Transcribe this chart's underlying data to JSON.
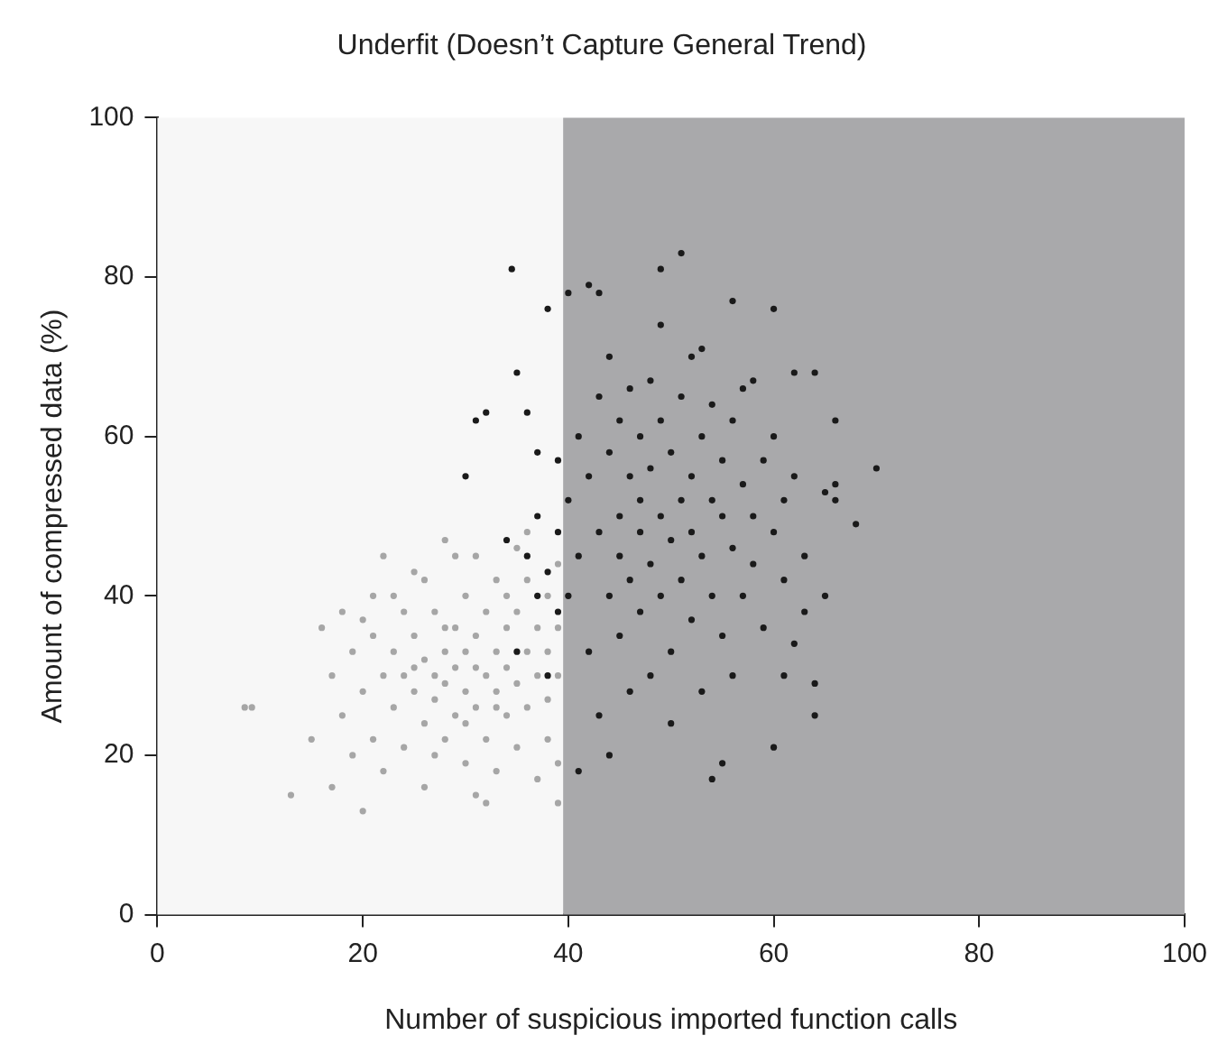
{
  "chart_data": {
    "type": "scatter",
    "title": "Underfit (Doesn’t Capture General Trend)",
    "xlabel": "Number of suspicious imported function calls",
    "ylabel": "Amount of compressed data (%)",
    "xlim": [
      0,
      100
    ],
    "xticks": [
      0,
      20,
      40,
      60,
      80,
      100
    ],
    "ylim": [
      0,
      100
    ],
    "yticks": [
      0,
      20,
      40,
      60,
      80,
      100
    ],
    "grid": false,
    "legend": false,
    "marker": "circle",
    "bands": [
      {
        "axis": "x",
        "from": 0,
        "to": 39.5,
        "color": "#f7f7f7"
      },
      {
        "axis": "x",
        "from": 39.5,
        "to": 100,
        "color": "#a9a9ab"
      }
    ],
    "series": [
      {
        "color": "#a6a6a6",
        "x": [
          8.5,
          9.2,
          13,
          15,
          16,
          17,
          17,
          18,
          18,
          19,
          19,
          20,
          20,
          21,
          21,
          21,
          22,
          22,
          22,
          23,
          23,
          24,
          24,
          24,
          25,
          25,
          25,
          26,
          26,
          26,
          27,
          27,
          27,
          28,
          28,
          28,
          28,
          29,
          29,
          29,
          30,
          30,
          30,
          30,
          31,
          31,
          31,
          31,
          32,
          32,
          32,
          33,
          33,
          33,
          33,
          34,
          34,
          34,
          35,
          35,
          35,
          35,
          36,
          36,
          36,
          37,
          37,
          37,
          38,
          38,
          38,
          38,
          39,
          39,
          39,
          39,
          39,
          26,
          23,
          20,
          27,
          29,
          32,
          34,
          36,
          31,
          25,
          28,
          30,
          33
        ],
        "values": [
          26,
          26,
          15,
          22,
          36,
          16,
          30,
          38,
          25,
          20,
          33,
          13,
          28,
          40,
          35,
          22,
          45,
          30,
          18,
          26,
          33,
          38,
          21,
          30,
          28,
          43,
          35,
          24,
          32,
          16,
          30,
          38,
          27,
          47,
          33,
          22,
          29,
          36,
          25,
          31,
          40,
          28,
          19,
          33,
          45,
          26,
          35,
          15,
          30,
          38,
          22,
          28,
          42,
          33,
          18,
          36,
          25,
          31,
          46,
          29,
          21,
          38,
          33,
          26,
          42,
          30,
          17,
          36,
          27,
          40,
          22,
          33,
          30,
          44,
          19,
          14,
          36,
          42,
          40,
          37,
          20,
          45,
          14,
          40,
          48,
          31,
          31,
          36,
          24,
          26
        ]
      },
      {
        "color": "#1a1a1a",
        "x": [
          30,
          31,
          32,
          34.5,
          35,
          36,
          37,
          38,
          36,
          37,
          38,
          39,
          39,
          38,
          39,
          34,
          35,
          37,
          40,
          40,
          40,
          41,
          41,
          41,
          42,
          42,
          42,
          43,
          43,
          43,
          43,
          44,
          44,
          44,
          44,
          45,
          45,
          45,
          45,
          46,
          46,
          46,
          46,
          47,
          47,
          47,
          47,
          48,
          48,
          48,
          48,
          49,
          49,
          49,
          49,
          49,
          50,
          50,
          50,
          50,
          51,
          51,
          51,
          51,
          52,
          52,
          52,
          52,
          53,
          53,
          53,
          53,
          54,
          54,
          54,
          54,
          55,
          55,
          55,
          55,
          56,
          56,
          56,
          56,
          57,
          57,
          57,
          58,
          58,
          58,
          59,
          59,
          60,
          60,
          60,
          60,
          61,
          61,
          62,
          62,
          62,
          63,
          64,
          64,
          64,
          65,
          65,
          66,
          66,
          66,
          68,
          70,
          63,
          61
        ],
        "values": [
          55,
          62,
          63,
          81,
          68,
          63,
          58,
          76,
          45,
          50,
          43,
          57,
          38,
          30,
          48,
          47,
          33,
          40,
          78,
          52,
          40,
          18,
          60,
          45,
          79,
          33,
          55,
          78,
          65,
          48,
          25,
          20,
          40,
          58,
          70,
          50,
          35,
          62,
          45,
          55,
          28,
          66,
          42,
          48,
          38,
          60,
          52,
          67,
          44,
          30,
          56,
          81,
          74,
          50,
          40,
          62,
          47,
          58,
          33,
          24,
          83,
          52,
          65,
          42,
          70,
          55,
          37,
          48,
          71,
          60,
          45,
          28,
          17,
          52,
          40,
          64,
          19,
          50,
          35,
          57,
          77,
          46,
          62,
          30,
          54,
          40,
          66,
          67,
          50,
          44,
          57,
          36,
          76,
          21,
          48,
          60,
          52,
          42,
          68,
          34,
          55,
          45,
          68,
          25,
          29,
          40,
          53,
          54,
          62,
          52,
          49,
          56,
          38,
          30
        ]
      }
    ]
  }
}
